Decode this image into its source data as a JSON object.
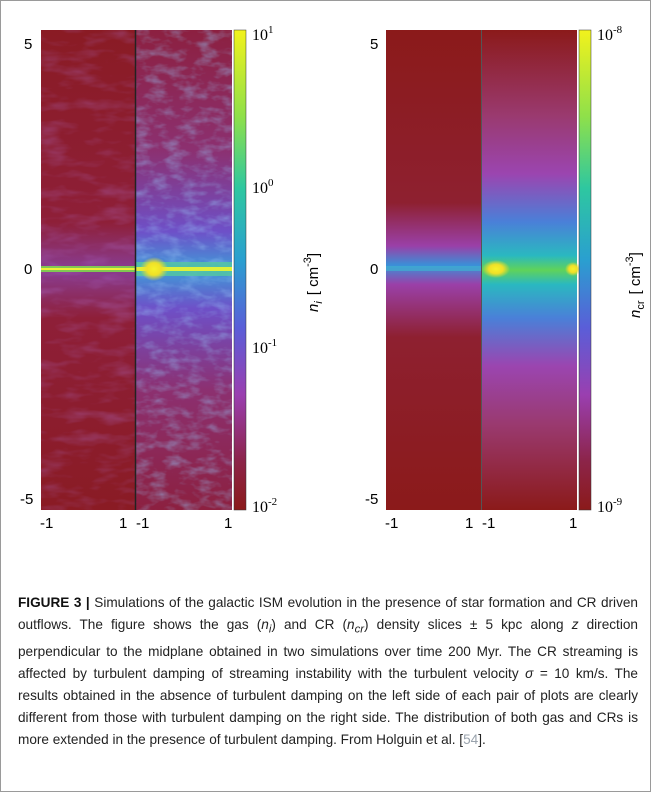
{
  "figure": {
    "left_panel": {
      "y_ticks": [
        "5",
        "0",
        "-5"
      ],
      "x_ticks": [
        "-1",
        "1",
        "-1",
        "1"
      ],
      "colorbar_ticks": [
        {
          "base": "10",
          "exp": "1"
        },
        {
          "base": "10",
          "exp": "0"
        },
        {
          "base": "10",
          "exp": "-1"
        },
        {
          "base": "10",
          "exp": "-2"
        }
      ],
      "colorbar_label": {
        "symbol": "n",
        "sub": "i",
        "unit": "[ cm",
        "unit_exp": "-3",
        "unit_close": "]"
      }
    },
    "right_panel": {
      "y_ticks": [
        "5",
        "0",
        "-5"
      ],
      "x_ticks": [
        "-1",
        "1",
        "-1",
        "1"
      ],
      "colorbar_ticks": [
        {
          "base": "10",
          "exp": "-8"
        },
        {
          "base": "10",
          "exp": "-9"
        }
      ],
      "colorbar_label": {
        "symbol": "n",
        "sub": "cr",
        "unit": "[ cm",
        "unit_exp": "-3",
        "unit_close": "]"
      }
    },
    "colors": {
      "dark_red": "#8b1a1a",
      "magenta": "#9b3fa0",
      "blue": "#3a8fd8",
      "cyan": "#22c4c4",
      "green": "#5fd35a",
      "yellow": "#f2f21c"
    }
  },
  "caption": {
    "label": "FIGURE 3 |",
    "p1": " Simulations of the galactic ISM evolution in the presence of star formation and CR driven outflows. The figure shows the gas (",
    "ni": "n",
    "ni_sub": "i",
    "p2": ") and CR (",
    "ncr": "n",
    "ncr_sub": "cr",
    "p3": ") density slices ± 5 kpc along ",
    "z": "z",
    "p4": " direction perpendicular to the midplane obtained in two simulations over time 200 Myr. The CR streaming is affected by turbulent damping of streaming instability with the turbulent velocity ",
    "sigma": "σ",
    "p5": " = 10 km/s. The results obtained in the absence of turbulent damping on the left side of each pair of plots are clearly different from those with turbulent damping on the right side. The distribution of both gas and CRs is more extended in the presence of turbulent damping. From Holguin et al. [",
    "ref": "54",
    "p6": "]."
  }
}
